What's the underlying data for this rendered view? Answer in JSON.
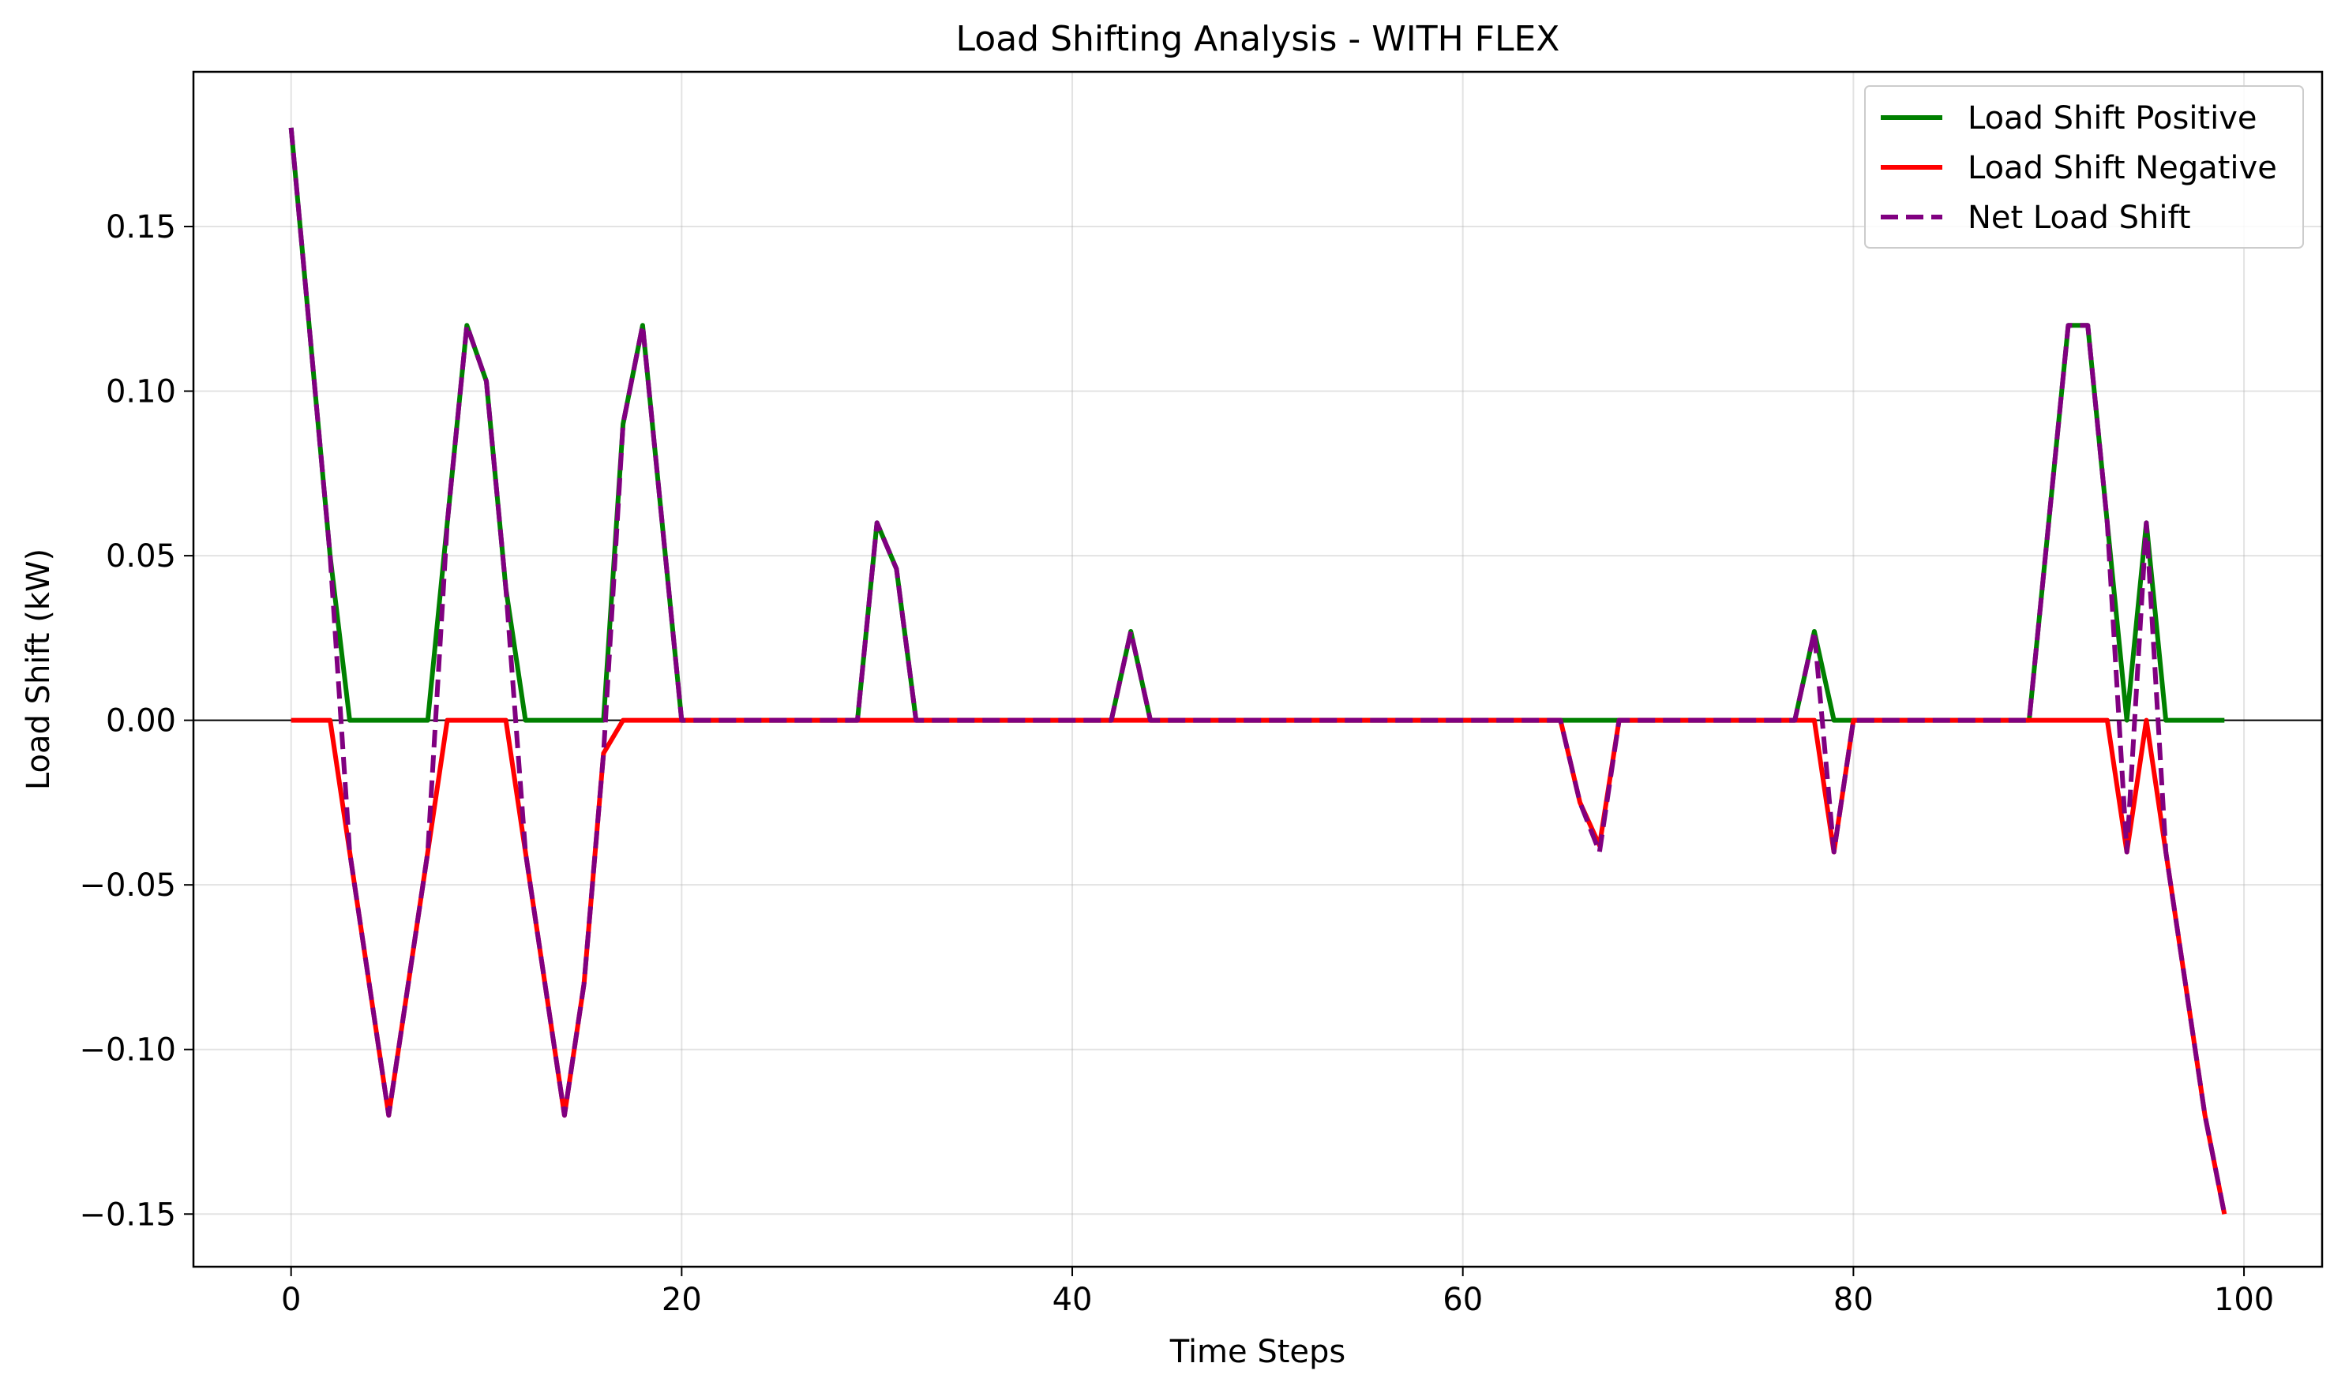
{
  "chart_data": {
    "type": "line",
    "title": "Load Shifting Analysis - WITH FLEX",
    "xlabel": "Time Steps",
    "ylabel": "Load Shift (kW)",
    "xlim": [
      -5,
      104
    ],
    "ylim": [
      -0.166,
      0.197
    ],
    "x_ticks": [
      0,
      20,
      40,
      60,
      80,
      100
    ],
    "y_ticks": [
      -0.15,
      -0.1,
      -0.05,
      0.0,
      0.05,
      0.1,
      0.15
    ],
    "x_tick_labels": [
      "0",
      "20",
      "40",
      "60",
      "80",
      "100"
    ],
    "y_tick_labels": [
      "−0.15",
      "−0.10",
      "−0.05",
      "0.00",
      "0.05",
      "0.10",
      "0.15"
    ],
    "grid": true,
    "zero_line": true,
    "legend_position": "top-right",
    "series": [
      {
        "name": "Load Shift Positive",
        "color": "#008000",
        "style": "solid",
        "points": [
          [
            0,
            0.18
          ],
          [
            1,
            0.115
          ],
          [
            2,
            0.05
          ],
          [
            3,
            0.0
          ],
          [
            7,
            0.0
          ],
          [
            8,
            0.06
          ],
          [
            9,
            0.12
          ],
          [
            10,
            0.103
          ],
          [
            11,
            0.04
          ],
          [
            12,
            0.0
          ],
          [
            16,
            0.0
          ],
          [
            17,
            0.09
          ],
          [
            18,
            0.12
          ],
          [
            19,
            0.06
          ],
          [
            20,
            0.0
          ],
          [
            29,
            0.0
          ],
          [
            30,
            0.06
          ],
          [
            31,
            0.046
          ],
          [
            32,
            0.0
          ],
          [
            42,
            0.0
          ],
          [
            43,
            0.027
          ],
          [
            44,
            0.0
          ],
          [
            77,
            0.0
          ],
          [
            78,
            0.027
          ],
          [
            79,
            0.0
          ],
          [
            89,
            0.0
          ],
          [
            90,
            0.06
          ],
          [
            91,
            0.12
          ],
          [
            92,
            0.12
          ],
          [
            93,
            0.06
          ],
          [
            94,
            0.0
          ],
          [
            95,
            0.06
          ],
          [
            96,
            0.0
          ],
          [
            99,
            0.0
          ]
        ]
      },
      {
        "name": "Load Shift Negative",
        "color": "#ff0000",
        "style": "solid",
        "points": [
          [
            0,
            0.0
          ],
          [
            2,
            0.0
          ],
          [
            3,
            -0.04
          ],
          [
            4,
            -0.08
          ],
          [
            5,
            -0.12
          ],
          [
            6,
            -0.08
          ],
          [
            7,
            -0.04
          ],
          [
            8,
            0.0
          ],
          [
            11,
            0.0
          ],
          [
            12,
            -0.04
          ],
          [
            13,
            -0.08
          ],
          [
            14,
            -0.12
          ],
          [
            15,
            -0.08
          ],
          [
            16,
            -0.01
          ],
          [
            17,
            0.0
          ],
          [
            65,
            0.0
          ],
          [
            66,
            -0.025
          ],
          [
            67,
            -0.038
          ],
          [
            68,
            0.0
          ],
          [
            78,
            0.0
          ],
          [
            79,
            -0.04
          ],
          [
            80,
            0.0
          ],
          [
            93,
            0.0
          ],
          [
            94,
            -0.04
          ],
          [
            95,
            0.0
          ],
          [
            96,
            -0.04
          ],
          [
            97,
            -0.08
          ],
          [
            98,
            -0.12
          ],
          [
            99,
            -0.15
          ]
        ]
      },
      {
        "name": "Net Load Shift",
        "color": "#800080",
        "style": "dashed",
        "points": [
          [
            0,
            0.18
          ],
          [
            1,
            0.115
          ],
          [
            2,
            0.05
          ],
          [
            3,
            -0.04
          ],
          [
            4,
            -0.08
          ],
          [
            5,
            -0.12
          ],
          [
            6,
            -0.08
          ],
          [
            7,
            -0.04
          ],
          [
            8,
            0.06
          ],
          [
            9,
            0.12
          ],
          [
            10,
            0.103
          ],
          [
            11,
            0.04
          ],
          [
            12,
            -0.04
          ],
          [
            13,
            -0.08
          ],
          [
            14,
            -0.12
          ],
          [
            15,
            -0.08
          ],
          [
            16,
            -0.01
          ],
          [
            17,
            0.09
          ],
          [
            18,
            0.12
          ],
          [
            19,
            0.06
          ],
          [
            20,
            0.0
          ],
          [
            29,
            0.0
          ],
          [
            30,
            0.06
          ],
          [
            31,
            0.046
          ],
          [
            32,
            0.0
          ],
          [
            42,
            0.0
          ],
          [
            43,
            0.027
          ],
          [
            44,
            0.0
          ],
          [
            65,
            0.0
          ],
          [
            66,
            -0.025
          ],
          [
            67,
            -0.04
          ],
          [
            68,
            0.0
          ],
          [
            77,
            0.0
          ],
          [
            78,
            0.027
          ],
          [
            79,
            -0.04
          ],
          [
            80,
            0.0
          ],
          [
            89,
            0.0
          ],
          [
            90,
            0.06
          ],
          [
            91,
            0.12
          ],
          [
            92,
            0.12
          ],
          [
            93,
            0.06
          ],
          [
            94,
            -0.04
          ],
          [
            95,
            0.06
          ],
          [
            96,
            -0.04
          ],
          [
            97,
            -0.08
          ],
          [
            98,
            -0.12
          ],
          [
            99,
            -0.15
          ]
        ]
      }
    ]
  }
}
